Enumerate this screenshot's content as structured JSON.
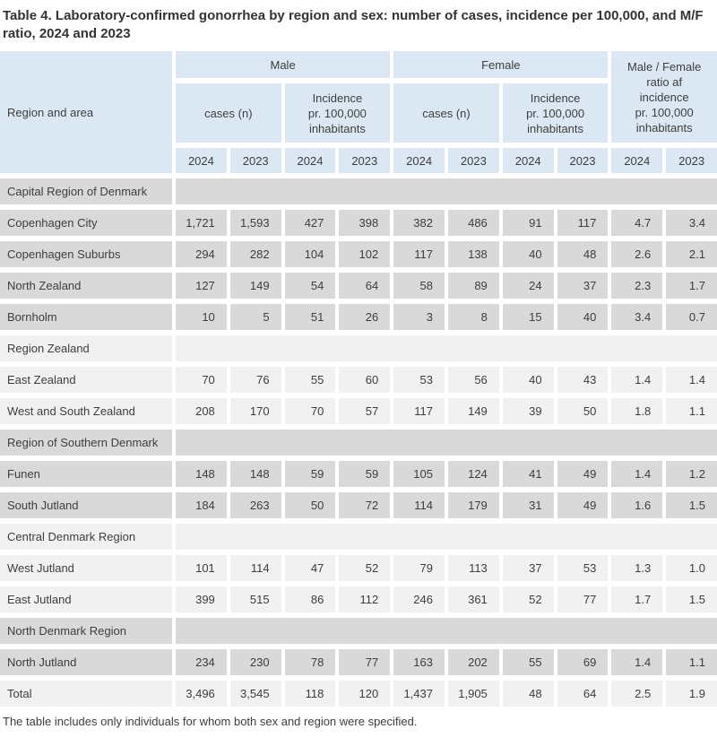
{
  "title": "Table 4. Laboratory-confirmed gonorrhea by region and sex: number of cases, incidence per 100,000, and M/F ratio, 2024 and 2023",
  "footnote": "The table includes only individuals for whom both sex and region were specified.",
  "colors": {
    "header_blue": "#dbe8f4",
    "row_dark": "#d9d9d9",
    "row_light": "#f1f1f1",
    "text": "#3d3d3d"
  },
  "table": {
    "corner_label": "Region and area",
    "groups": [
      {
        "label": "Male",
        "sub": [
          "cases (n)",
          "Incidence\npr. 100,000\ninhabitants"
        ]
      },
      {
        "label": "Female",
        "sub": [
          "cases (n)",
          "Incidence\npr. 100,000\ninhabitants"
        ]
      },
      {
        "label": "Male / Female\nratio af\nincidence\npr. 100,000\ninhabitants"
      }
    ],
    "years": [
      "2024",
      "2023",
      "2024",
      "2023",
      "2024",
      "2023",
      "2024",
      "2023",
      "2024",
      "2023"
    ],
    "rows": [
      {
        "type": "region",
        "shade": "dark",
        "label": "Capital Region of Denmark"
      },
      {
        "type": "data",
        "shade": "dark",
        "label": "Copenhagen City",
        "values": [
          "1,721",
          "1,593",
          "427",
          "398",
          "382",
          "486",
          "91",
          "117",
          "4.7",
          "3.4"
        ]
      },
      {
        "type": "data",
        "shade": "dark",
        "label": "Copenhagen Suburbs",
        "values": [
          "294",
          "282",
          "104",
          "102",
          "117",
          "138",
          "40",
          "48",
          "2.6",
          "2.1"
        ]
      },
      {
        "type": "data",
        "shade": "dark",
        "label": "North Zealand",
        "values": [
          "127",
          "149",
          "54",
          "64",
          "58",
          "89",
          "24",
          "37",
          "2.3",
          "1.7"
        ]
      },
      {
        "type": "data",
        "shade": "dark",
        "label": "Bornholm",
        "values": [
          "10",
          "5",
          "51",
          "26",
          "3",
          "8",
          "15",
          "40",
          "3.4",
          "0.7"
        ]
      },
      {
        "type": "region",
        "shade": "light",
        "label": "Region Zealand"
      },
      {
        "type": "data",
        "shade": "light",
        "label": "East Zealand",
        "values": [
          "70",
          "76",
          "55",
          "60",
          "53",
          "56",
          "40",
          "43",
          "1.4",
          "1.4"
        ]
      },
      {
        "type": "data",
        "shade": "light",
        "label": "West and South Zealand",
        "values": [
          "208",
          "170",
          "70",
          "57",
          "117",
          "149",
          "39",
          "50",
          "1.8",
          "1.1"
        ]
      },
      {
        "type": "region",
        "shade": "dark",
        "label": "Region of Southern Denmark"
      },
      {
        "type": "data",
        "shade": "dark",
        "label": "Funen",
        "values": [
          "148",
          "148",
          "59",
          "59",
          "105",
          "124",
          "41",
          "49",
          "1.4",
          "1.2"
        ]
      },
      {
        "type": "data",
        "shade": "dark",
        "label": "South Jutland",
        "values": [
          "184",
          "263",
          "50",
          "72",
          "114",
          "179",
          "31",
          "49",
          "1.6",
          "1.5"
        ]
      },
      {
        "type": "region",
        "shade": "light",
        "label": "Central Denmark Region"
      },
      {
        "type": "data",
        "shade": "light",
        "label": "West Jutland",
        "values": [
          "101",
          "114",
          "47",
          "52",
          "79",
          "113",
          "37",
          "53",
          "1.3",
          "1.0"
        ]
      },
      {
        "type": "data",
        "shade": "light",
        "label": "East Jutland",
        "values": [
          "399",
          "515",
          "86",
          "112",
          "246",
          "361",
          "52",
          "77",
          "1.7",
          "1.5"
        ]
      },
      {
        "type": "region",
        "shade": "dark",
        "label": "North Denmark Region"
      },
      {
        "type": "data",
        "shade": "dark",
        "label": "North Jutland",
        "values": [
          "234",
          "230",
          "78",
          "77",
          "163",
          "202",
          "55",
          "69",
          "1.4",
          "1.1"
        ]
      },
      {
        "type": "data",
        "shade": "light",
        "label": "Total",
        "values": [
          "3,496",
          "3,545",
          "118",
          "120",
          "1,437",
          "1,905",
          "48",
          "64",
          "2.5",
          "1.9"
        ]
      }
    ]
  }
}
